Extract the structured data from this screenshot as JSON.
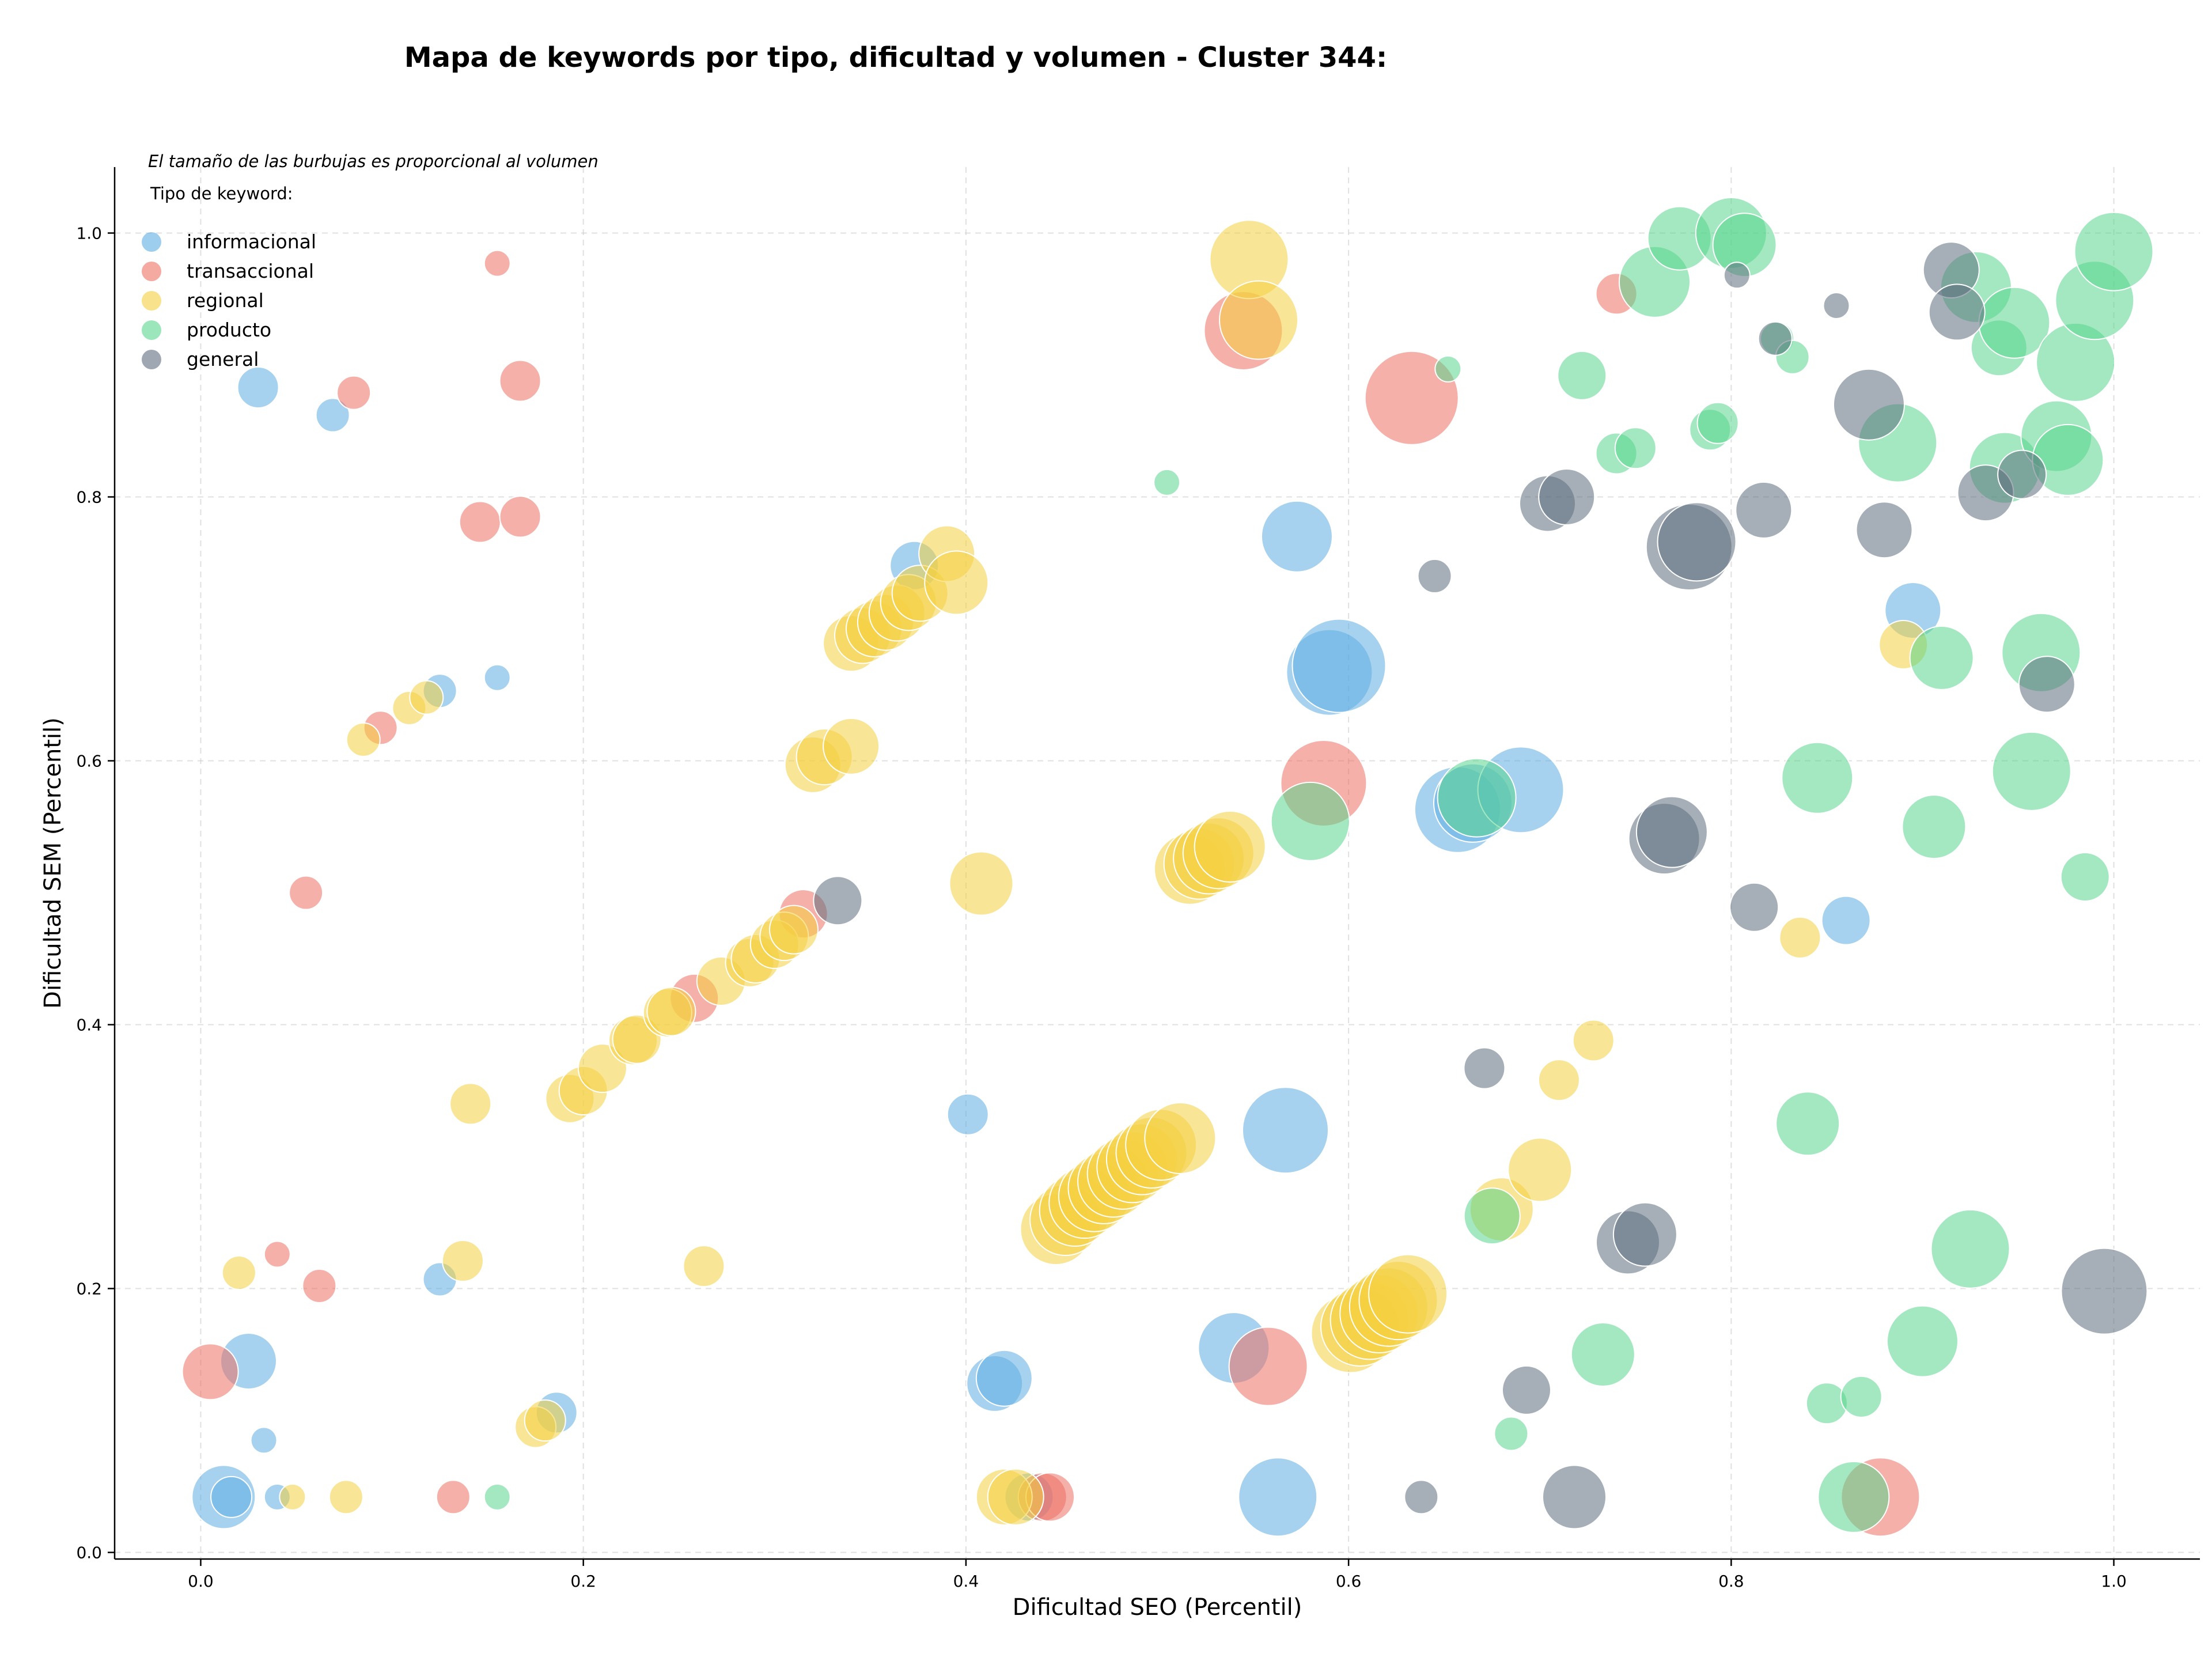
{
  "chart_data": {
    "type": "scatter",
    "title": "Mapa de keywords por tipo, dificultad y volumen - Cluster 344:",
    "note": "El tamaño de las burbujas es proporcional al volumen",
    "xlabel": "Dificultad SEO (Percentil)",
    "ylabel": "Dificultad SEM (Percentil)",
    "xlim": [
      -0.045,
      1.045
    ],
    "ylim": [
      -0.005,
      1.05
    ],
    "xticks": [
      "0.0",
      "0.2",
      "0.4",
      "0.6",
      "0.8",
      "1.0"
    ],
    "yticks": [
      "0.0",
      "0.2",
      "0.4",
      "0.6",
      "0.8",
      "1.0"
    ],
    "grid": true,
    "legend": {
      "title": "Tipo de keyword:",
      "placement": "top-left",
      "entries": [
        "informacional",
        "transaccional",
        "regional",
        "producto",
        "general"
      ]
    },
    "colors": {
      "informacional": "#5dade2",
      "transaccional": "#ec7063",
      "regional": "#f4d03f",
      "producto": "#58d68d",
      "general": "#5d6d7e"
    },
    "series": [
      {
        "name": "informacional",
        "points": [
          {
            "x": 0.03,
            "y": 0.883,
            "size": 3
          },
          {
            "x": 0.069,
            "y": 0.862,
            "size": 2
          },
          {
            "x": 0.125,
            "y": 0.653,
            "size": 2
          },
          {
            "x": 0.155,
            "y": 0.663,
            "size": 1
          },
          {
            "x": 0.025,
            "y": 0.145,
            "size": 5
          },
          {
            "x": 0.033,
            "y": 0.085,
            "size": 1
          },
          {
            "x": 0.012,
            "y": 0.042,
            "size": 6
          },
          {
            "x": 0.016,
            "y": 0.042,
            "size": 3
          },
          {
            "x": 0.04,
            "y": 0.042,
            "size": 1
          },
          {
            "x": 0.125,
            "y": 0.207,
            "size": 2
          },
          {
            "x": 0.186,
            "y": 0.106,
            "size": 3
          },
          {
            "x": 0.373,
            "y": 0.748,
            "size": 4
          },
          {
            "x": 0.401,
            "y": 0.332,
            "size": 3
          },
          {
            "x": 0.415,
            "y": 0.128,
            "size": 5
          },
          {
            "x": 0.42,
            "y": 0.132,
            "size": 5
          },
          {
            "x": 0.433,
            "y": 0.042,
            "size": 4
          },
          {
            "x": 0.54,
            "y": 0.155,
            "size": 7
          },
          {
            "x": 0.563,
            "y": 0.042,
            "size": 8
          },
          {
            "x": 0.567,
            "y": 0.32,
            "size": 9
          },
          {
            "x": 0.573,
            "y": 0.77,
            "size": 7
          },
          {
            "x": 0.59,
            "y": 0.667,
            "size": 9
          },
          {
            "x": 0.595,
            "y": 0.672,
            "size": 10
          },
          {
            "x": 0.657,
            "y": 0.563,
            "size": 9
          },
          {
            "x": 0.665,
            "y": 0.568,
            "size": 8
          },
          {
            "x": 0.69,
            "y": 0.578,
            "size": 9
          },
          {
            "x": 0.86,
            "y": 0.479,
            "size": 4
          },
          {
            "x": 0.895,
            "y": 0.714,
            "size": 5
          }
        ]
      },
      {
        "name": "transaccional",
        "points": [
          {
            "x": 0.155,
            "y": 0.977,
            "size": 1
          },
          {
            "x": 0.08,
            "y": 0.879,
            "size": 2
          },
          {
            "x": 0.167,
            "y": 0.888,
            "size": 3
          },
          {
            "x": 0.146,
            "y": 0.781,
            "size": 3
          },
          {
            "x": 0.167,
            "y": 0.785,
            "size": 3
          },
          {
            "x": 0.094,
            "y": 0.625,
            "size": 2
          },
          {
            "x": 0.055,
            "y": 0.5,
            "size": 2
          },
          {
            "x": 0.005,
            "y": 0.137,
            "size": 5
          },
          {
            "x": 0.04,
            "y": 0.226,
            "size": 1
          },
          {
            "x": 0.062,
            "y": 0.202,
            "size": 2
          },
          {
            "x": 0.132,
            "y": 0.042,
            "size": 2
          },
          {
            "x": 0.258,
            "y": 0.42,
            "size": 4
          },
          {
            "x": 0.315,
            "y": 0.484,
            "size": 4
          },
          {
            "x": 0.44,
            "y": 0.042,
            "size": 4
          },
          {
            "x": 0.444,
            "y": 0.042,
            "size": 4
          },
          {
            "x": 0.545,
            "y": 0.926,
            "size": 8
          },
          {
            "x": 0.558,
            "y": 0.141,
            "size": 8
          },
          {
            "x": 0.587,
            "y": 0.583,
            "size": 9
          },
          {
            "x": 0.633,
            "y": 0.875,
            "size": 10
          },
          {
            "x": 0.74,
            "y": 0.954,
            "size": 3
          },
          {
            "x": 0.878,
            "y": 0.042,
            "size": 8
          }
        ]
      },
      {
        "name": "regional",
        "points": [
          {
            "x": 0.085,
            "y": 0.616,
            "size": 2
          },
          {
            "x": 0.109,
            "y": 0.64,
            "size": 2
          },
          {
            "x": 0.118,
            "y": 0.648,
            "size": 2
          },
          {
            "x": 0.141,
            "y": 0.34,
            "size": 3
          },
          {
            "x": 0.137,
            "y": 0.221,
            "size": 3
          },
          {
            "x": 0.02,
            "y": 0.212,
            "size": 2
          },
          {
            "x": 0.048,
            "y": 0.042,
            "size": 1
          },
          {
            "x": 0.076,
            "y": 0.042,
            "size": 2
          },
          {
            "x": 0.175,
            "y": 0.095,
            "size": 3
          },
          {
            "x": 0.18,
            "y": 0.1,
            "size": 3
          },
          {
            "x": 0.193,
            "y": 0.344,
            "size": 4
          },
          {
            "x": 0.2,
            "y": 0.35,
            "size": 4
          },
          {
            "x": 0.21,
            "y": 0.367,
            "size": 4
          },
          {
            "x": 0.226,
            "y": 0.388,
            "size": 4
          },
          {
            "x": 0.228,
            "y": 0.389,
            "size": 4
          },
          {
            "x": 0.244,
            "y": 0.409,
            "size": 4
          },
          {
            "x": 0.246,
            "y": 0.41,
            "size": 4
          },
          {
            "x": 0.272,
            "y": 0.433,
            "size": 4
          },
          {
            "x": 0.287,
            "y": 0.447,
            "size": 4
          },
          {
            "x": 0.29,
            "y": 0.45,
            "size": 4
          },
          {
            "x": 0.3,
            "y": 0.461,
            "size": 4
          },
          {
            "x": 0.305,
            "y": 0.467,
            "size": 4
          },
          {
            "x": 0.31,
            "y": 0.472,
            "size": 4
          },
          {
            "x": 0.263,
            "y": 0.217,
            "size": 3
          },
          {
            "x": 0.32,
            "y": 0.597,
            "size": 5
          },
          {
            "x": 0.326,
            "y": 0.603,
            "size": 5
          },
          {
            "x": 0.34,
            "y": 0.611,
            "size": 5
          },
          {
            "x": 0.34,
            "y": 0.689,
            "size": 5
          },
          {
            "x": 0.346,
            "y": 0.695,
            "size": 5
          },
          {
            "x": 0.352,
            "y": 0.7,
            "size": 5
          },
          {
            "x": 0.358,
            "y": 0.705,
            "size": 5
          },
          {
            "x": 0.364,
            "y": 0.712,
            "size": 5
          },
          {
            "x": 0.37,
            "y": 0.72,
            "size": 5
          },
          {
            "x": 0.376,
            "y": 0.727,
            "size": 5
          },
          {
            "x": 0.39,
            "y": 0.757,
            "size": 5
          },
          {
            "x": 0.395,
            "y": 0.735,
            "size": 6
          },
          {
            "x": 0.408,
            "y": 0.507,
            "size": 6
          },
          {
            "x": 0.42,
            "y": 0.042,
            "size": 5
          },
          {
            "x": 0.426,
            "y": 0.042,
            "size": 5
          },
          {
            "x": 0.447,
            "y": 0.245,
            "size": 7
          },
          {
            "x": 0.452,
            "y": 0.252,
            "size": 7
          },
          {
            "x": 0.457,
            "y": 0.259,
            "size": 7
          },
          {
            "x": 0.462,
            "y": 0.265,
            "size": 7
          },
          {
            "x": 0.467,
            "y": 0.27,
            "size": 7
          },
          {
            "x": 0.472,
            "y": 0.276,
            "size": 7
          },
          {
            "x": 0.477,
            "y": 0.281,
            "size": 7
          },
          {
            "x": 0.482,
            "y": 0.287,
            "size": 7
          },
          {
            "x": 0.487,
            "y": 0.292,
            "size": 7
          },
          {
            "x": 0.492,
            "y": 0.298,
            "size": 7
          },
          {
            "x": 0.497,
            "y": 0.303,
            "size": 7
          },
          {
            "x": 0.502,
            "y": 0.309,
            "size": 7
          },
          {
            "x": 0.512,
            "y": 0.314,
            "size": 7
          },
          {
            "x": 0.517,
            "y": 0.518,
            "size": 7
          },
          {
            "x": 0.522,
            "y": 0.522,
            "size": 7
          },
          {
            "x": 0.527,
            "y": 0.526,
            "size": 7
          },
          {
            "x": 0.532,
            "y": 0.53,
            "size": 7
          },
          {
            "x": 0.538,
            "y": 0.535,
            "size": 7
          },
          {
            "x": 0.548,
            "y": 0.98,
            "size": 8
          },
          {
            "x": 0.553,
            "y": 0.934,
            "size": 8
          },
          {
            "x": 0.601,
            "y": 0.166,
            "size": 8
          },
          {
            "x": 0.606,
            "y": 0.171,
            "size": 8
          },
          {
            "x": 0.611,
            "y": 0.176,
            "size": 8
          },
          {
            "x": 0.616,
            "y": 0.181,
            "size": 8
          },
          {
            "x": 0.621,
            "y": 0.186,
            "size": 8
          },
          {
            "x": 0.626,
            "y": 0.191,
            "size": 8
          },
          {
            "x": 0.631,
            "y": 0.196,
            "size": 8
          },
          {
            "x": 0.68,
            "y": 0.26,
            "size": 6
          },
          {
            "x": 0.7,
            "y": 0.29,
            "size": 6
          },
          {
            "x": 0.71,
            "y": 0.358,
            "size": 3
          },
          {
            "x": 0.728,
            "y": 0.388,
            "size": 3
          },
          {
            "x": 0.836,
            "y": 0.466,
            "size": 3
          },
          {
            "x": 0.89,
            "y": 0.688,
            "size": 4
          }
        ]
      },
      {
        "name": "producto",
        "points": [
          {
            "x": 0.155,
            "y": 0.042,
            "size": 1
          },
          {
            "x": 0.505,
            "y": 0.811,
            "size": 1
          },
          {
            "x": 0.58,
            "y": 0.554,
            "size": 8
          },
          {
            "x": 0.667,
            "y": 0.572,
            "size": 8
          },
          {
            "x": 0.652,
            "y": 0.897,
            "size": 1
          },
          {
            "x": 0.675,
            "y": 0.255,
            "size": 5
          },
          {
            "x": 0.685,
            "y": 0.09,
            "size": 2
          },
          {
            "x": 0.722,
            "y": 0.892,
            "size": 4
          },
          {
            "x": 0.74,
            "y": 0.833,
            "size": 3
          },
          {
            "x": 0.75,
            "y": 0.837,
            "size": 3
          },
          {
            "x": 0.733,
            "y": 0.15,
            "size": 6
          },
          {
            "x": 0.76,
            "y": 0.963,
            "size": 7
          },
          {
            "x": 0.773,
            "y": 0.996,
            "size": 6
          },
          {
            "x": 0.789,
            "y": 0.851,
            "size": 3
          },
          {
            "x": 0.793,
            "y": 0.856,
            "size": 3
          },
          {
            "x": 0.8,
            "y": 1.0,
            "size": 7
          },
          {
            "x": 0.807,
            "y": 0.991,
            "size": 6
          },
          {
            "x": 0.824,
            "y": 0.92,
            "size": 2
          },
          {
            "x": 0.832,
            "y": 0.906,
            "size": 2
          },
          {
            "x": 0.84,
            "y": 0.325,
            "size": 6
          },
          {
            "x": 0.845,
            "y": 0.587,
            "size": 7
          },
          {
            "x": 0.85,
            "y": 0.113,
            "size": 3
          },
          {
            "x": 0.864,
            "y": 0.042,
            "size": 7
          },
          {
            "x": 0.868,
            "y": 0.118,
            "size": 3
          },
          {
            "x": 0.887,
            "y": 0.841,
            "size": 8
          },
          {
            "x": 0.9,
            "y": 0.16,
            "size": 7
          },
          {
            "x": 0.906,
            "y": 0.55,
            "size": 6
          },
          {
            "x": 0.91,
            "y": 0.678,
            "size": 6
          },
          {
            "x": 0.925,
            "y": 0.23,
            "size": 8
          },
          {
            "x": 0.928,
            "y": 0.959,
            "size": 7
          },
          {
            "x": 0.94,
            "y": 0.913,
            "size": 5
          },
          {
            "x": 0.943,
            "y": 0.822,
            "size": 7
          },
          {
            "x": 0.948,
            "y": 0.932,
            "size": 7
          },
          {
            "x": 0.957,
            "y": 0.592,
            "size": 8
          },
          {
            "x": 0.962,
            "y": 0.682,
            "size": 8
          },
          {
            "x": 0.97,
            "y": 0.846,
            "size": 7
          },
          {
            "x": 0.976,
            "y": 0.828,
            "size": 7
          },
          {
            "x": 0.98,
            "y": 0.902,
            "size": 8
          },
          {
            "x": 0.985,
            "y": 0.512,
            "size": 4
          },
          {
            "x": 0.99,
            "y": 0.949,
            "size": 8
          },
          {
            "x": 1.0,
            "y": 0.986,
            "size": 8
          }
        ]
      },
      {
        "name": "general",
        "points": [
          {
            "x": 0.333,
            "y": 0.494,
            "size": 4
          },
          {
            "x": 0.638,
            "y": 0.042,
            "size": 2
          },
          {
            "x": 0.645,
            "y": 0.74,
            "size": 2
          },
          {
            "x": 0.671,
            "y": 0.367,
            "size": 3
          },
          {
            "x": 0.693,
            "y": 0.123,
            "size": 4
          },
          {
            "x": 0.704,
            "y": 0.795,
            "size": 5
          },
          {
            "x": 0.714,
            "y": 0.8,
            "size": 5
          },
          {
            "x": 0.718,
            "y": 0.042,
            "size": 6
          },
          {
            "x": 0.746,
            "y": 0.235,
            "size": 6
          },
          {
            "x": 0.755,
            "y": 0.241,
            "size": 6
          },
          {
            "x": 0.765,
            "y": 0.541,
            "size": 7
          },
          {
            "x": 0.769,
            "y": 0.546,
            "size": 7
          },
          {
            "x": 0.778,
            "y": 0.762,
            "size": 9
          },
          {
            "x": 0.782,
            "y": 0.766,
            "size": 8
          },
          {
            "x": 0.803,
            "y": 0.968,
            "size": 1
          },
          {
            "x": 0.812,
            "y": 0.489,
            "size": 4
          },
          {
            "x": 0.817,
            "y": 0.79,
            "size": 5
          },
          {
            "x": 0.823,
            "y": 0.92,
            "size": 2
          },
          {
            "x": 0.855,
            "y": 0.945,
            "size": 1
          },
          {
            "x": 0.872,
            "y": 0.87,
            "size": 7
          },
          {
            "x": 0.88,
            "y": 0.775,
            "size": 5
          },
          {
            "x": 0.915,
            "y": 0.972,
            "size": 5
          },
          {
            "x": 0.918,
            "y": 0.94,
            "size": 5
          },
          {
            "x": 0.933,
            "y": 0.803,
            "size": 5
          },
          {
            "x": 0.952,
            "y": 0.817,
            "size": 4
          },
          {
            "x": 0.965,
            "y": 0.658,
            "size": 5
          },
          {
            "x": 0.995,
            "y": 0.198,
            "size": 9
          }
        ]
      }
    ]
  }
}
